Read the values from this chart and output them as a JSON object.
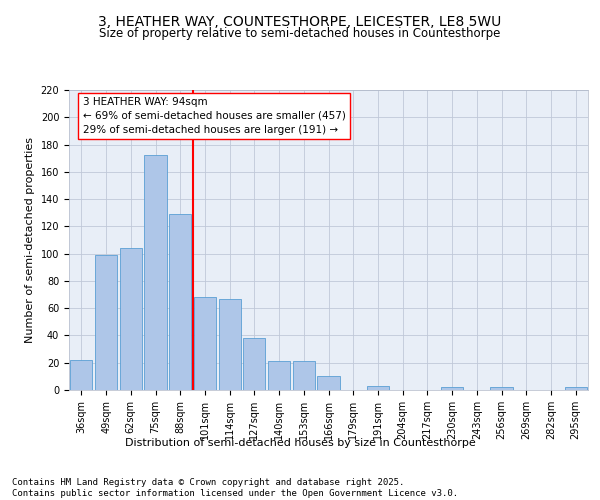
{
  "title": "3, HEATHER WAY, COUNTESTHORPE, LEICESTER, LE8 5WU",
  "subtitle": "Size of property relative to semi-detached houses in Countesthorpe",
  "xlabel": "Distribution of semi-detached houses by size in Countesthorpe",
  "ylabel": "Number of semi-detached properties",
  "categories": [
    "36sqm",
    "49sqm",
    "62sqm",
    "75sqm",
    "88sqm",
    "101sqm",
    "114sqm",
    "127sqm",
    "140sqm",
    "153sqm",
    "166sqm",
    "179sqm",
    "191sqm",
    "204sqm",
    "217sqm",
    "230sqm",
    "243sqm",
    "256sqm",
    "269sqm",
    "282sqm",
    "295sqm"
  ],
  "values": [
    22,
    99,
    104,
    172,
    129,
    68,
    67,
    38,
    21,
    21,
    10,
    0,
    3,
    0,
    0,
    2,
    0,
    2,
    0,
    0,
    2
  ],
  "bar_color": "#aec6e8",
  "bar_edge_color": "#5a9fd4",
  "vline_color": "red",
  "annotation_text": "3 HEATHER WAY: 94sqm\n← 69% of semi-detached houses are smaller (457)\n29% of semi-detached houses are larger (191) →",
  "ylim": [
    0,
    220
  ],
  "yticks": [
    0,
    20,
    40,
    60,
    80,
    100,
    120,
    140,
    160,
    180,
    200,
    220
  ],
  "bg_color": "#dde6f0",
  "plot_area_bg": "#e8eef7",
  "footer": "Contains HM Land Registry data © Crown copyright and database right 2025.\nContains public sector information licensed under the Open Government Licence v3.0.",
  "title_fontsize": 10,
  "subtitle_fontsize": 8.5,
  "annotation_fontsize": 7.5,
  "footer_fontsize": 6.5,
  "tick_fontsize": 7,
  "ylabel_fontsize": 8,
  "xlabel_fontsize": 8
}
